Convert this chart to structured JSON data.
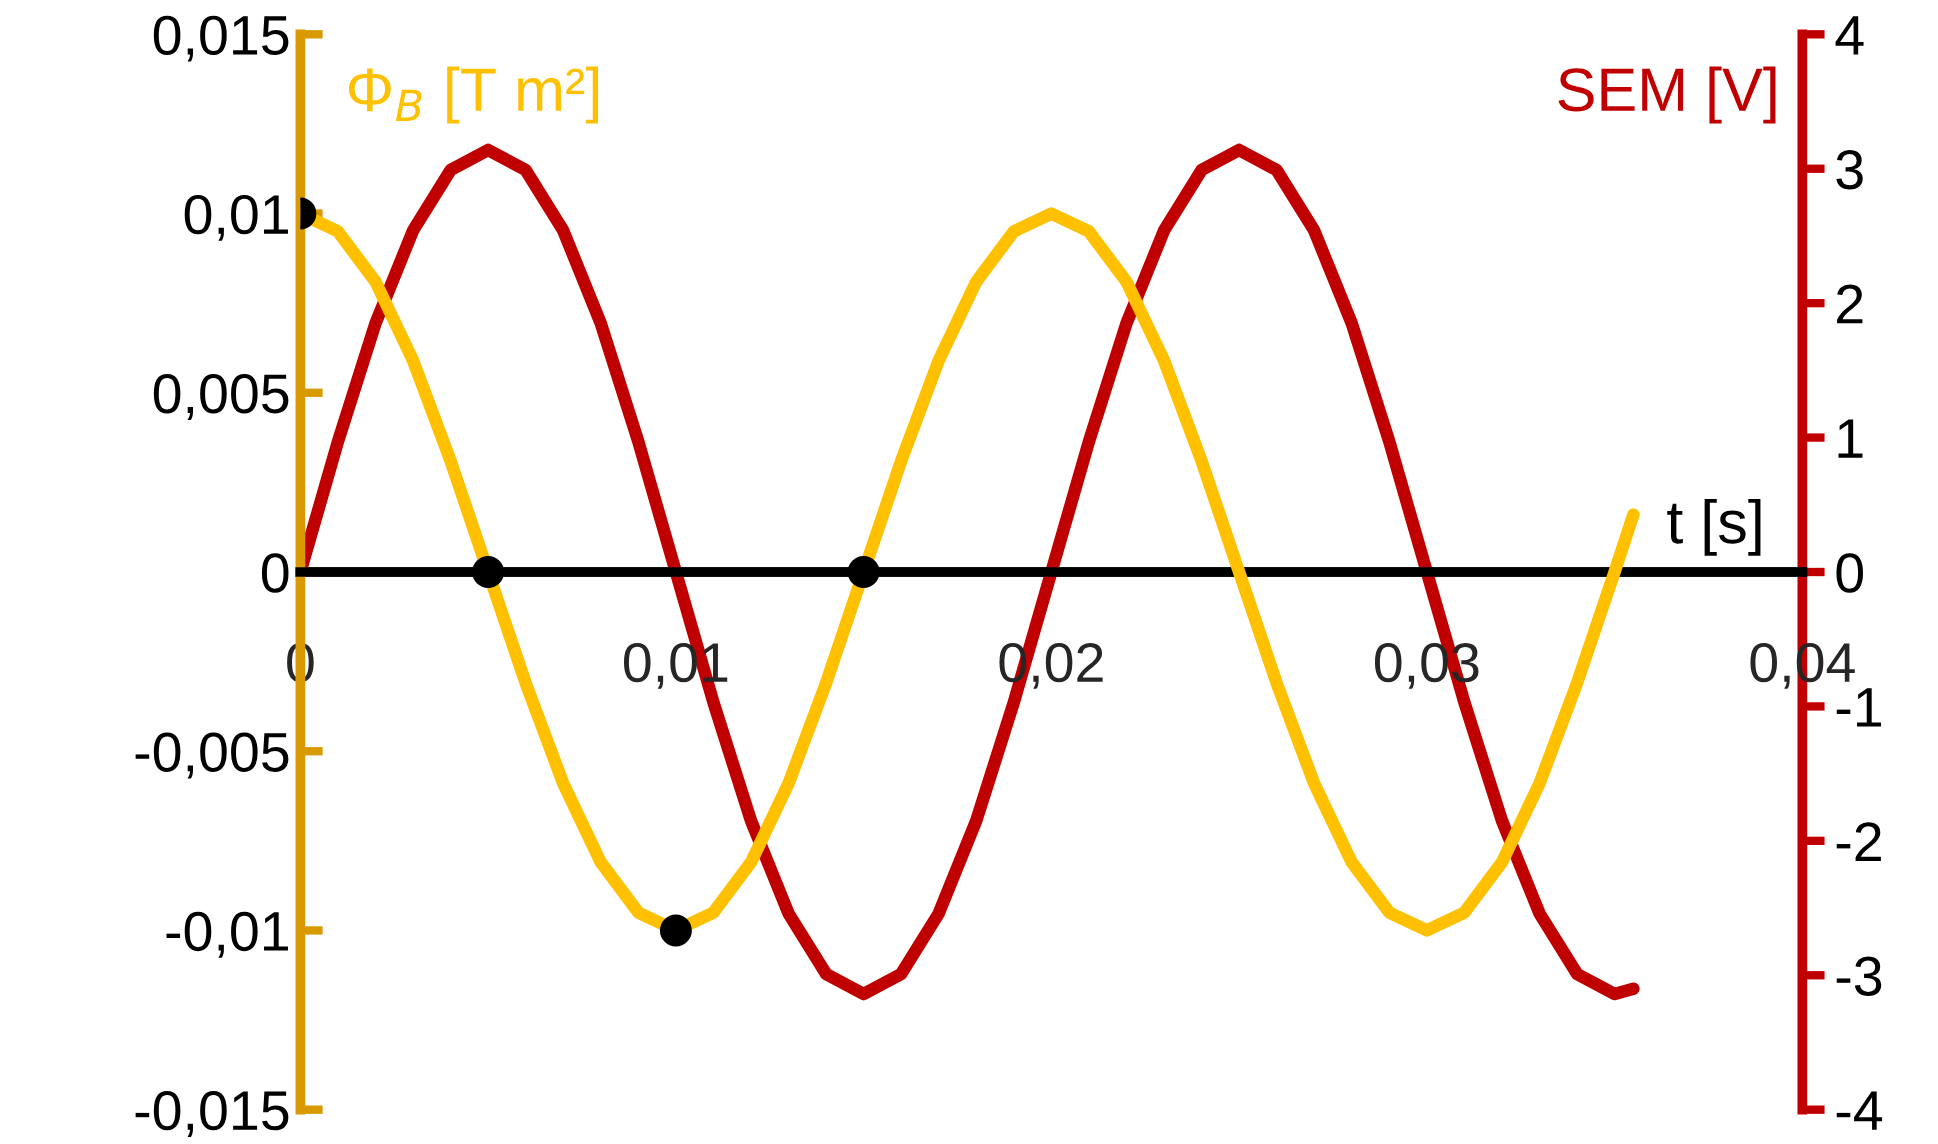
{
  "chart_data": {
    "type": "line",
    "xlabel": "t [s]",
    "ylabel": "Φ$_{B}$ [T m²]",
    "y2label": "SEM [V]",
    "x": [
      0,
      0.001,
      0.002,
      0.003,
      0.004,
      0.005,
      0.006,
      0.007,
      0.008,
      0.009,
      0.01,
      0.011,
      0.012,
      0.013,
      0.014,
      0.015,
      0.016,
      0.017,
      0.018,
      0.019,
      0.02,
      0.021,
      0.022,
      0.023,
      0.024,
      0.025,
      0.026,
      0.027,
      0.028,
      0.029,
      0.03,
      0.031,
      0.032,
      0.033,
      0.034,
      0.035,
      0.0355
    ],
    "series": [
      {
        "color": "#ffc000",
        "values": [
          0.01,
          0.0095,
          0.0081,
          0.0059,
          0.0031,
          0,
          -0.0031,
          -0.0059,
          -0.0081,
          -0.0095,
          -0.01,
          -0.0095,
          -0.0081,
          -0.0059,
          -0.0031,
          0,
          0.0031,
          0.0059,
          0.0081,
          0.0095,
          0.01,
          0.0095,
          0.0081,
          0.0059,
          0.0031,
          0,
          -0.0031,
          -0.0059,
          -0.0081,
          -0.0095,
          -0.01,
          -0.0095,
          -0.0081,
          -0.0059,
          -0.0031,
          0,
          0.0016
        ]
      },
      {
        "color": "#c00000",
        "axis": "y2",
        "values": [
          0,
          0.97,
          1.85,
          2.54,
          2.99,
          3.14,
          2.99,
          2.54,
          1.85,
          0.97,
          0,
          -0.97,
          -1.85,
          -2.54,
          -2.99,
          -3.14,
          -2.99,
          -2.54,
          -1.85,
          -0.97,
          0,
          0.97,
          1.85,
          2.54,
          2.99,
          3.14,
          2.99,
          2.54,
          1.85,
          0.97,
          0,
          -0.97,
          -1.85,
          -2.54,
          -2.99,
          -3.14,
          -3.1
        ]
      },
      {
        "type": "scatter",
        "color": "#000000",
        "marker": "circle",
        "x": [
          0,
          0.005,
          0.01,
          0.015
        ],
        "values": [
          0.01,
          0,
          -0.01,
          0
        ]
      }
    ],
    "xlim": [
      0,
      0.04
    ],
    "xticks": [
      0,
      {
        "value": 0.01,
        "label": "0,01"
      },
      {
        "value": 0.02,
        "label": "0,02"
      },
      {
        "value": 0.03,
        "label": "0,03"
      },
      {
        "value": 0.04,
        "label": "0,04"
      }
    ],
    "ylim": [
      -0.015,
      0.015
    ],
    "yticks": [
      {
        "value": -0.015,
        "label": "-0,015"
      },
      {
        "value": -0.01,
        "label": "-0,01"
      },
      {
        "value": -0.005,
        "label": "-0,005"
      },
      0,
      {
        "value": 0.005,
        "label": "0,005"
      },
      {
        "value": 0.01,
        "label": "0,01"
      },
      {
        "value": 0.015,
        "label": "0,015"
      }
    ],
    "y2lim": [
      -4,
      4
    ],
    "y2ticks": [
      -4,
      -3,
      -2,
      -1,
      0,
      1,
      2,
      3,
      4
    ]
  }
}
